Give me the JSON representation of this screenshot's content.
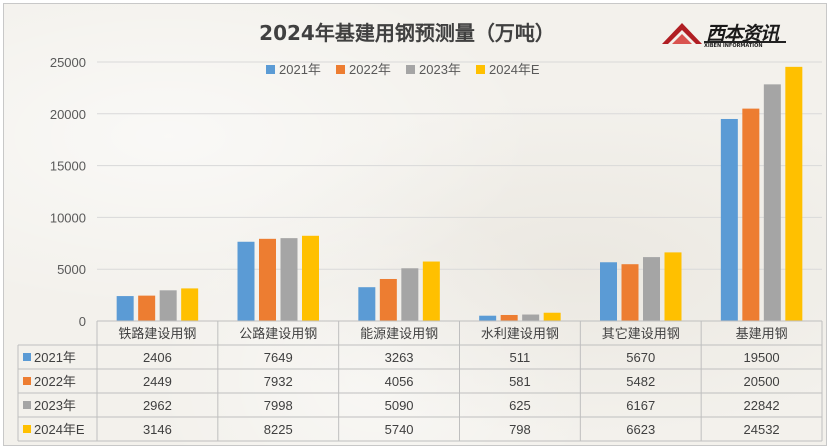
{
  "logo": {
    "name": "西本资讯",
    "subtitle": "XIBEN INFORMATION"
  },
  "chart_data": {
    "type": "bar",
    "title": "2024年基建用钢预测量（万吨）",
    "categories": [
      "铁路建设用钢",
      "公路建设用钢",
      "能源建设用钢",
      "水利建设用钢",
      "其它建设用钢",
      "基建用钢"
    ],
    "series": [
      {
        "name": "2021年",
        "color": "#5b9bd5",
        "values": [
          2406,
          7649,
          3263,
          511,
          5670,
          19500
        ]
      },
      {
        "name": "2022年",
        "color": "#ed7d31",
        "values": [
          2449,
          7932,
          4056,
          581,
          5482,
          20500
        ]
      },
      {
        "name": "2023年",
        "color": "#a5a5a5",
        "values": [
          2962,
          7998,
          5090,
          625,
          6167,
          22842
        ]
      },
      {
        "name": "2024年E",
        "color": "#ffc000",
        "values": [
          3146,
          8225,
          5740,
          798,
          6623,
          24532
        ]
      }
    ],
    "ylim": [
      0,
      25000
    ],
    "yticks": [
      0,
      5000,
      10000,
      15000,
      20000,
      25000
    ],
    "grid": true,
    "legend": "top-center",
    "data_table": true
  }
}
